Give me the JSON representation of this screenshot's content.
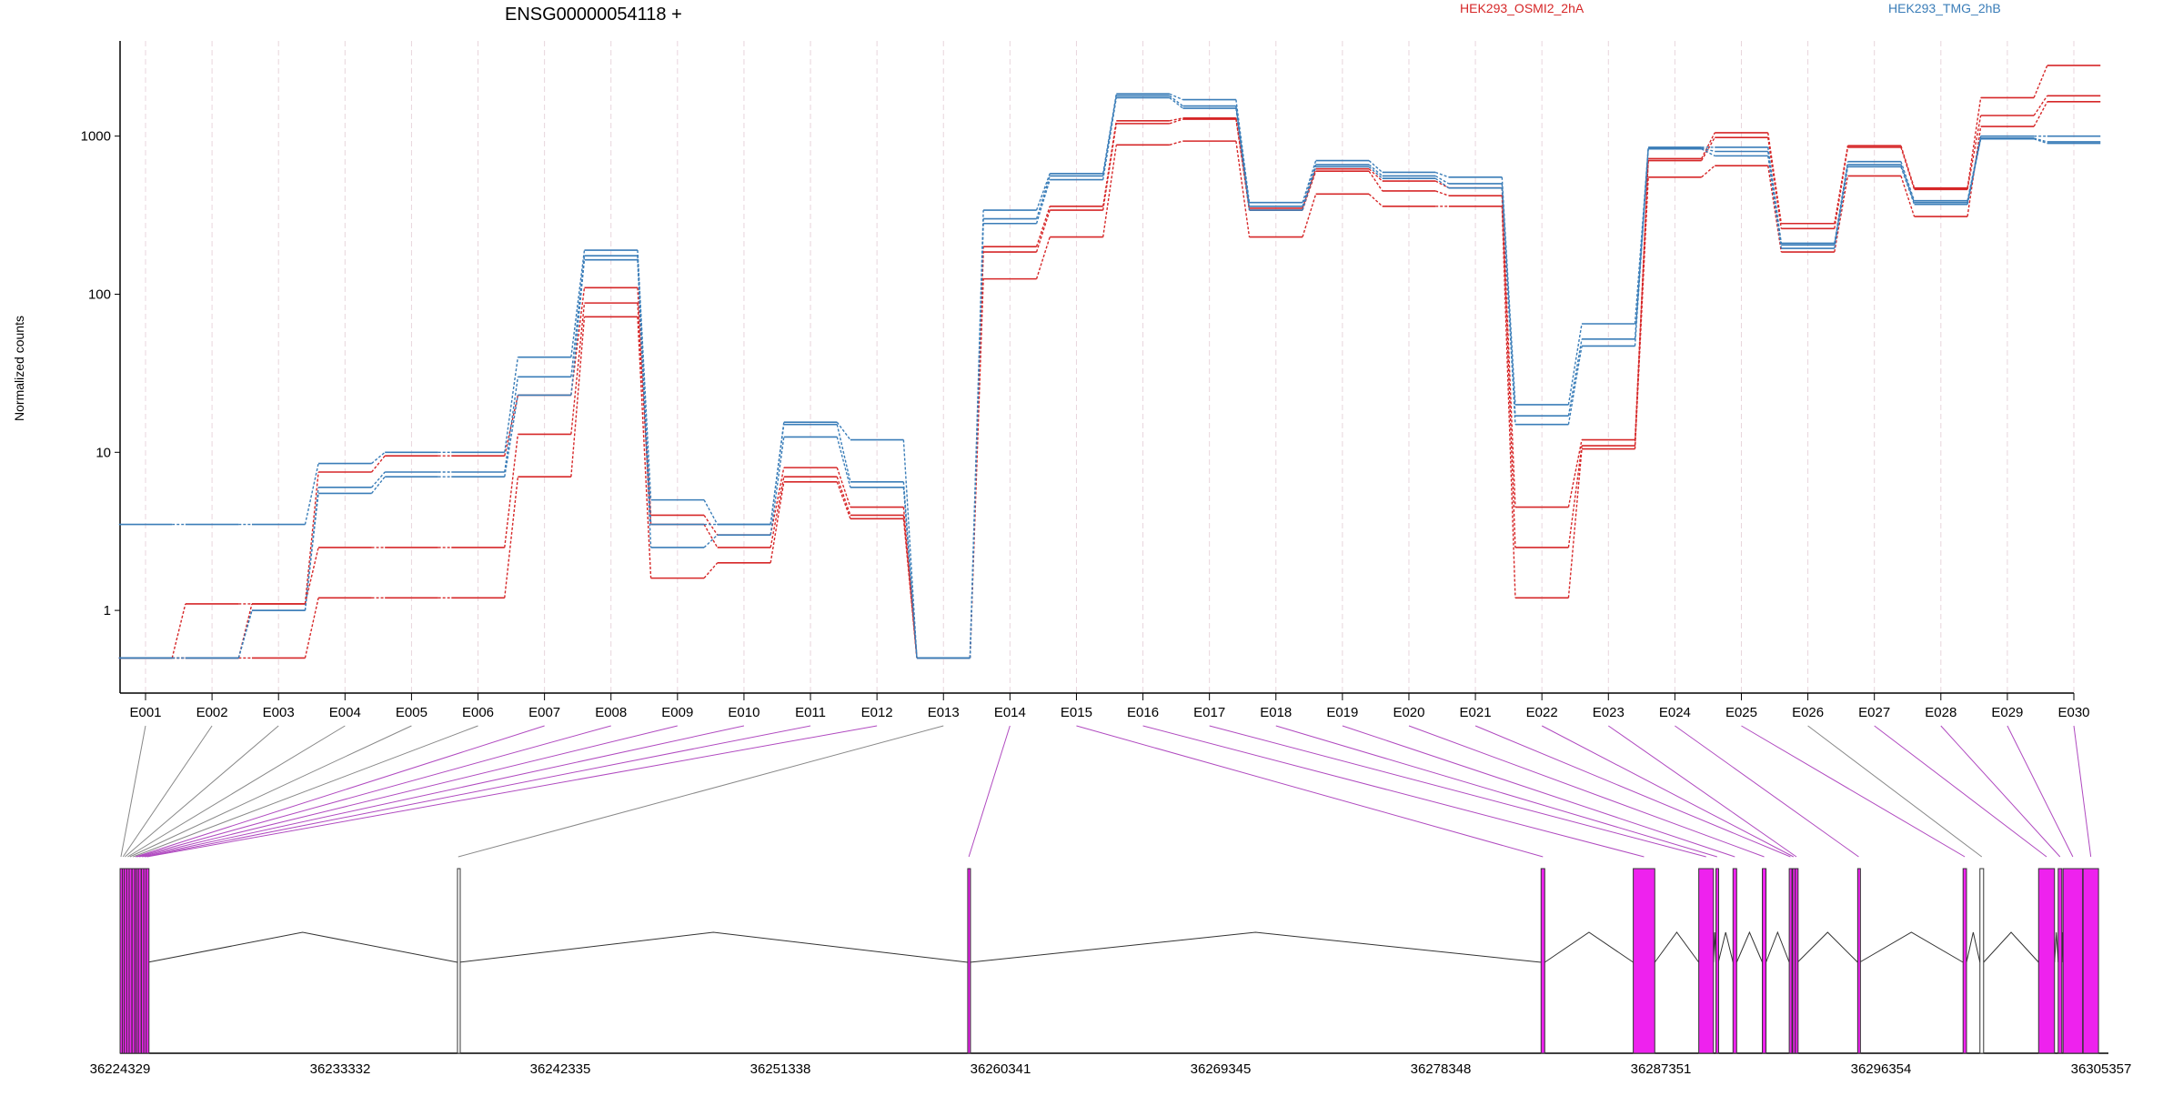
{
  "chart_data": {
    "type": "line",
    "title": "ENSG00000054118 +",
    "ylabel": "Normalized counts",
    "xlabel": "",
    "yscale": "log",
    "ylim": [
      0.3,
      4000
    ],
    "yticks": [
      1,
      10,
      100,
      1000
    ],
    "ytick_labels": [
      "1",
      "10",
      "100",
      "1000"
    ],
    "grid": "vertical dashed lines at exon positions",
    "legend_placement": "top-right",
    "colors": {
      "HEK293_OSMI2_2hA": "#d62728",
      "HEK293_TMG_2hB": "#3a7db8",
      "connector_pink": "#b04ac0",
      "connector_gray": "#888888",
      "exon_fill": "#ee22ee"
    },
    "exons": [
      "E001",
      "E002",
      "E003",
      "E004",
      "E005",
      "E006",
      "E007",
      "E008",
      "E009",
      "E010",
      "E011",
      "E012",
      "E013",
      "E014",
      "E015",
      "E016",
      "E017",
      "E018",
      "E019",
      "E020",
      "E021",
      "E022",
      "E023",
      "E024",
      "E025",
      "E026",
      "E027",
      "E028",
      "E029",
      "E030"
    ],
    "series": [
      {
        "name": "HEK293_OSMI2_2hA",
        "color": "#d62728",
        "values": [
          0.5,
          1.1,
          1.1,
          7.5,
          9.5,
          9.5,
          23,
          110,
          4,
          3,
          8,
          4.5,
          0.5,
          200,
          360,
          1250,
          1300,
          350,
          620,
          520,
          470,
          4.5,
          12,
          720,
          1050,
          280,
          870,
          470,
          1750,
          2800
        ]
      },
      {
        "name": "HEK293_OSMI2_2hA",
        "color": "#d62728",
        "values": [
          0.5,
          0.5,
          1.1,
          2.5,
          2.5,
          2.5,
          13,
          88,
          3.5,
          2.5,
          7,
          4,
          0.5,
          185,
          340,
          1200,
          1280,
          340,
          600,
          450,
          420,
          2.5,
          11,
          700,
          980,
          260,
          850,
          460,
          1350,
          1800
        ]
      },
      {
        "name": "HEK293_OSMI2_2hA",
        "color": "#d62728",
        "values": [
          0.5,
          0.5,
          0.5,
          1.2,
          1.2,
          1.2,
          7,
          72,
          1.6,
          2,
          6.5,
          3.8,
          0.5,
          125,
          230,
          880,
          930,
          230,
          430,
          360,
          360,
          1.2,
          10.5,
          550,
          650,
          185,
          560,
          310,
          1150,
          1650
        ]
      },
      {
        "name": "HEK293_TMG_2hB",
        "color": "#3a7db8",
        "values": [
          3.5,
          3.5,
          3.5,
          8.5,
          10,
          10,
          40,
          190,
          5,
          3.5,
          15.5,
          12,
          0.5,
          340,
          580,
          1850,
          1700,
          380,
          700,
          590,
          550,
          20,
          65,
          850,
          850,
          210,
          690,
          390,
          1000,
          1000
        ]
      },
      {
        "name": "HEK293_TMG_2hB",
        "color": "#3a7db8",
        "values": [
          0.5,
          0.5,
          1,
          6,
          7.5,
          7.5,
          30,
          175,
          3.5,
          3.5,
          15,
          6.5,
          0.5,
          300,
          560,
          1800,
          1550,
          360,
          660,
          560,
          500,
          17,
          52,
          840,
          800,
          205,
          660,
          380,
          970,
          920
        ]
      },
      {
        "name": "HEK293_TMG_2hB",
        "color": "#3a7db8",
        "values": [
          0.5,
          0.5,
          1,
          5.5,
          7,
          7,
          23,
          165,
          2.5,
          3,
          12.5,
          6,
          0.5,
          280,
          530,
          1750,
          1500,
          340,
          640,
          540,
          470,
          15,
          47,
          830,
          750,
          195,
          640,
          370,
          960,
          900
        ]
      }
    ],
    "gene_model": {
      "coordinate_labels": [
        "36224329",
        "36233332",
        "36242335",
        "36251338",
        "36260341",
        "36269345",
        "36278348",
        "36287351",
        "36296354",
        "36305357"
      ],
      "coordinate_values": [
        36224329,
        36233332,
        36242335,
        36251338,
        36260341,
        36269345,
        36278348,
        36287351,
        36296354,
        36305357
      ],
      "exon_coords": [
        [
          36224330,
          36224400
        ],
        [
          36224420,
          36224480
        ],
        [
          36224500,
          36224560
        ],
        [
          36224600,
          36224680
        ],
        [
          36224700,
          36224760
        ],
        [
          36224820,
          36224900
        ],
        [
          36224930,
          36224990
        ],
        [
          36225000,
          36225050
        ],
        [
          36225080,
          36225150
        ],
        [
          36225200,
          36225260
        ],
        [
          36225300,
          36225370
        ],
        [
          36225400,
          36225460
        ],
        [
          36238130,
          36238190
        ],
        [
          36259000,
          36259090
        ],
        [
          36282450,
          36282600
        ],
        [
          36286220,
          36287100
        ],
        [
          36288900,
          36289500
        ],
        [
          36289600,
          36289700
        ],
        [
          36290300,
          36290450
        ],
        [
          36291500,
          36291650
        ],
        [
          36292600,
          36292700
        ],
        [
          36292740,
          36292810
        ],
        [
          36292850,
          36292940
        ],
        [
          36295400,
          36295480
        ],
        [
          36299710,
          36299850
        ],
        [
          36300400,
          36300550
        ],
        [
          36302800,
          36303450
        ],
        [
          36303600,
          36303750
        ],
        [
          36303800,
          36304600
        ],
        [
          36304620,
          36305250
        ]
      ],
      "gray_exons": [
        "E013",
        "E026"
      ]
    }
  }
}
